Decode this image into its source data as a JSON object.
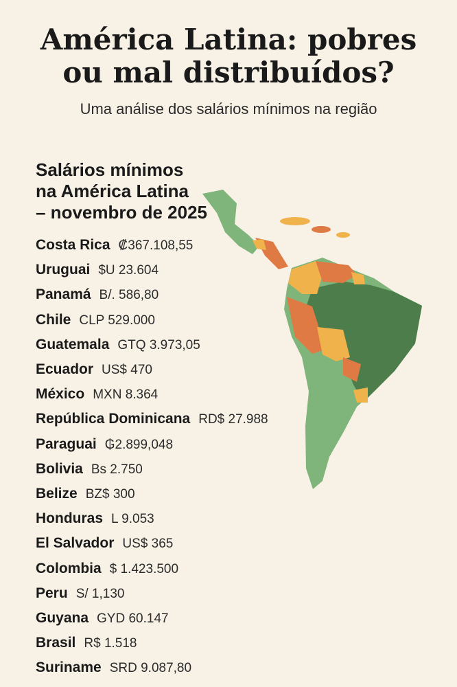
{
  "header": {
    "title_lines": [
      "América Latina: pobres",
      "ou mal distribuídos?"
    ],
    "subtitle": "Uma análise dos salários mínimos na região"
  },
  "section": {
    "title_lines": [
      "Salários mínimos",
      "na América Latina",
      "– novembro de 2025"
    ]
  },
  "list": [
    {
      "country": "Costa Rica",
      "wage": "₡367.108,55"
    },
    {
      "country": "Uruguai",
      "wage": "$U 23.604"
    },
    {
      "country": "Panamá",
      "wage": "B/. 586,80"
    },
    {
      "country": "Chile",
      "wage": "CLP 529.000"
    },
    {
      "country": "Guatemala",
      "wage": "GTQ 3.973,05"
    },
    {
      "country": "Ecuador",
      "wage": "US$ 470"
    },
    {
      "country": "México",
      "wage": "MXN 8.364"
    },
    {
      "country": "República Dominicana",
      "wage": "RD$ 27.988"
    },
    {
      "country": "Paraguai",
      "wage": "₲2.899,048"
    },
    {
      "country": "Bolivia",
      "wage": "Bs 2.750"
    },
    {
      "country": "Belize",
      "wage": "BZ$ 300"
    },
    {
      "country": "Honduras",
      "wage": "L 9.053"
    },
    {
      "country": "El Salvador",
      "wage": "US$ 365"
    },
    {
      "country": "Colombia",
      "wage": "$ 1.423.500"
    },
    {
      "country": "Peru",
      "wage": "S/ 1,130"
    },
    {
      "country": "Guyana",
      "wage": "GYD 60.147"
    },
    {
      "country": "Brasil",
      "wage": "R$ 1.518"
    },
    {
      "country": "Suriname",
      "wage": "SRD 9.087,80"
    }
  ]
}
